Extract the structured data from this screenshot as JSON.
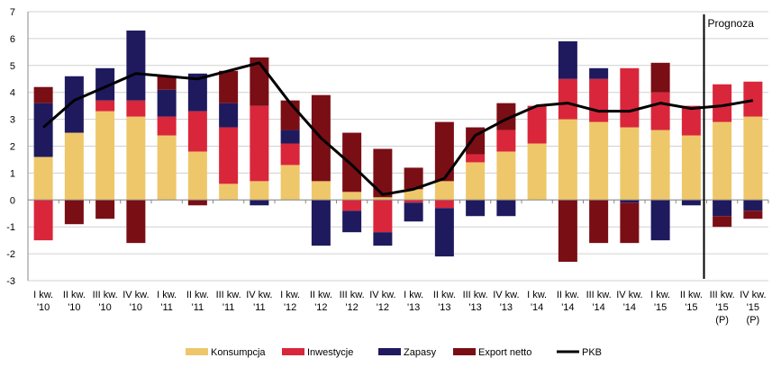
{
  "chart_data": {
    "type": "bar",
    "stacked": true,
    "ylim": [
      -3,
      7
    ],
    "yticks": [
      -3,
      -2,
      -1,
      0,
      1,
      2,
      3,
      4,
      5,
      6,
      7
    ],
    "grid": true,
    "categories": [
      [
        "I kw.",
        "'10"
      ],
      [
        "II kw.",
        "'10"
      ],
      [
        "III kw.",
        "'10"
      ],
      [
        "IV kw.",
        "'10"
      ],
      [
        "I kw.",
        "'11"
      ],
      [
        "II kw.",
        "'11"
      ],
      [
        "III kw.",
        "'11"
      ],
      [
        "IV kw.",
        "'11"
      ],
      [
        "I kw.",
        "'12"
      ],
      [
        "II kw.",
        "'12"
      ],
      [
        "III kw.",
        "'12"
      ],
      [
        "IV kw.",
        "'12"
      ],
      [
        "I kw.",
        "'13"
      ],
      [
        "II kw.",
        "'13"
      ],
      [
        "III kw.",
        "'13"
      ],
      [
        "IV kw.",
        "'13"
      ],
      [
        "I kw.",
        "'14"
      ],
      [
        "II kw.",
        "'14"
      ],
      [
        "III kw.",
        "'14"
      ],
      [
        "IV kw.",
        "'14"
      ],
      [
        "I kw.",
        "'15"
      ],
      [
        "II kw.",
        "'15"
      ],
      [
        "III kw.",
        "'15",
        "(P)"
      ],
      [
        "IV kw.",
        "'15",
        "(P)"
      ]
    ],
    "series": [
      {
        "name": "Konsumpcja",
        "color": "#EEC76A",
        "values": [
          1.6,
          2.5,
          3.3,
          3.1,
          2.4,
          1.8,
          0.6,
          0.7,
          1.3,
          0.7,
          0.3,
          0.1,
          0.4,
          0.7,
          1.4,
          1.8,
          2.1,
          3.0,
          2.9,
          2.7,
          2.6,
          2.4,
          2.9,
          3.1
        ]
      },
      {
        "name": "Inwestycje",
        "color": "#D9263B",
        "values": [
          -1.5,
          0.0,
          0.4,
          0.6,
          0.7,
          1.5,
          2.1,
          2.8,
          0.8,
          0.0,
          -0.4,
          -1.2,
          -0.1,
          -0.3,
          0.3,
          0.8,
          1.4,
          1.5,
          1.6,
          2.2,
          1.4,
          1.1,
          1.4,
          1.3
        ]
      },
      {
        "name": "Zapasy",
        "color": "#1F1A5E",
        "values": [
          2.0,
          2.1,
          1.2,
          2.6,
          1.0,
          1.4,
          0.9,
          -0.2,
          0.5,
          -1.7,
          -0.8,
          -0.5,
          -0.7,
          -1.8,
          -0.6,
          -0.6,
          0.0,
          1.4,
          0.4,
          -0.1,
          -1.5,
          -0.2,
          -0.6,
          -0.4
        ]
      },
      {
        "name": "Export netto",
        "color": "#7A0E15",
        "values": [
          0.6,
          -0.9,
          -0.7,
          -1.6,
          0.5,
          -0.2,
          1.2,
          1.8,
          1.1,
          3.2,
          2.2,
          1.8,
          0.8,
          2.2,
          1.0,
          1.0,
          0.0,
          -2.3,
          -1.6,
          -1.5,
          1.1,
          0.0,
          -0.4,
          -0.3
        ]
      }
    ],
    "line": {
      "name": "PKB",
      "color": "#000000",
      "values": [
        2.7,
        3.7,
        4.2,
        4.7,
        4.6,
        4.5,
        4.8,
        5.1,
        3.6,
        2.3,
        1.3,
        0.2,
        0.4,
        0.8,
        2.4,
        3.0,
        3.5,
        3.6,
        3.3,
        3.3,
        3.6,
        3.4,
        3.5,
        3.7
      ]
    },
    "forecast_after_index": 21,
    "annotation": "Prognoza",
    "legend_position": "bottom"
  }
}
